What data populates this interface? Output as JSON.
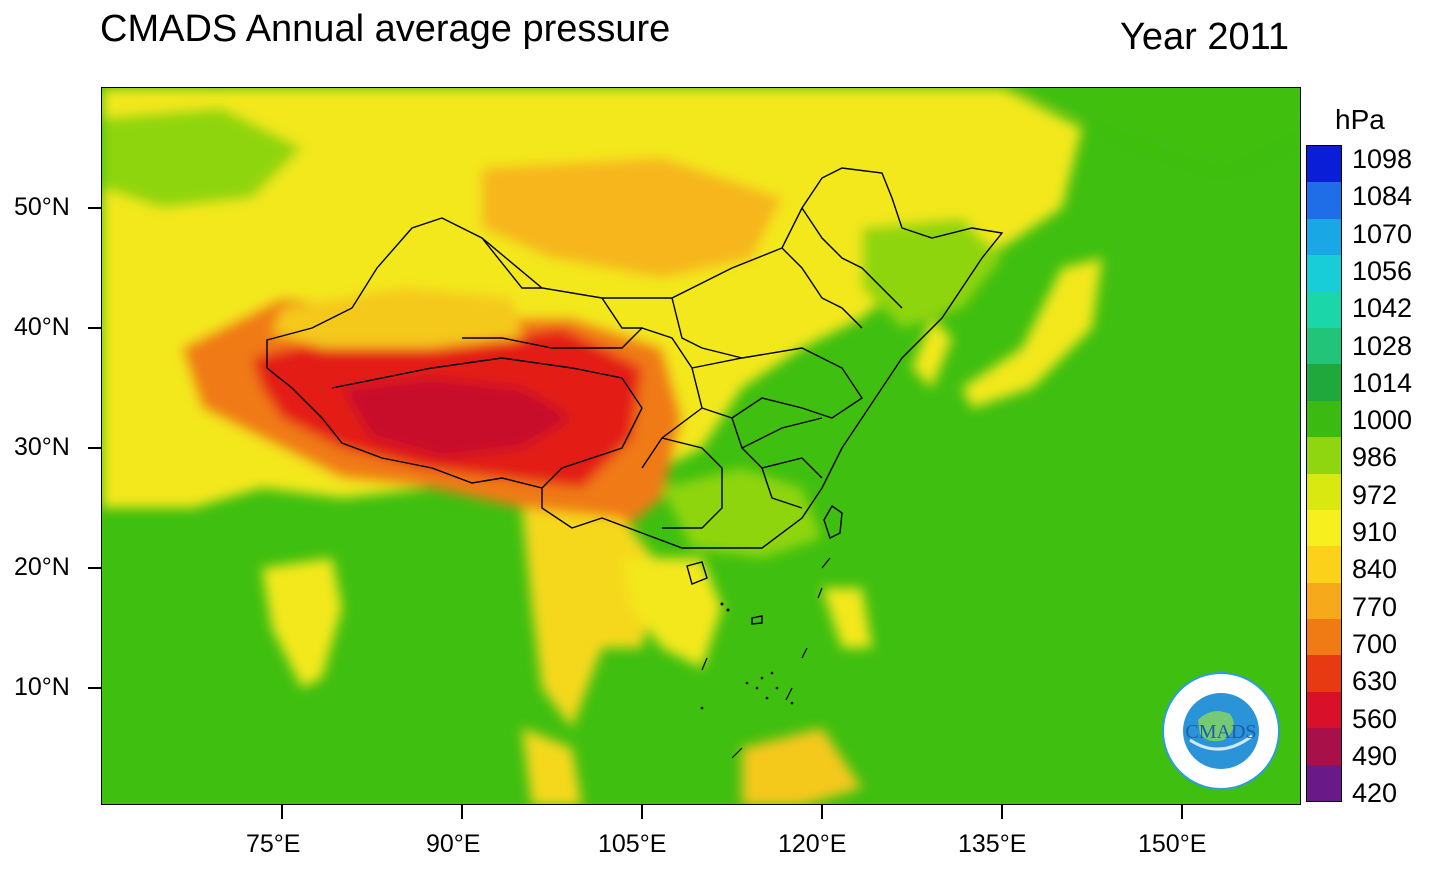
{
  "title": "CMADS Annual average pressure",
  "year": "Year 2011",
  "unit": "hPa",
  "y_ticks": [
    "50°N",
    "40°N",
    "30°N",
    "20°N",
    "10°N"
  ],
  "x_ticks": [
    "75°E",
    "90°E",
    "105°E",
    "120°E",
    "135°E",
    "150°E"
  ],
  "colorbar": {
    "labels": [
      "1098",
      "1084",
      "1070",
      "1056",
      "1042",
      "1028",
      "1014",
      "1000",
      "986",
      "972",
      "910",
      "840",
      "770",
      "700",
      "630",
      "560",
      "490",
      "420"
    ],
    "colors": [
      "#0a1ed8",
      "#1f6ee8",
      "#1aa7e6",
      "#18cdd8",
      "#1ad6a8",
      "#22c47a",
      "#21a83c",
      "#3bbb12",
      "#8fd510",
      "#d9e810",
      "#f7f01e",
      "#fbd11a",
      "#f6a91a",
      "#f07a14",
      "#e83a12",
      "#d8102a",
      "#a8104a",
      "#6a1a88"
    ]
  },
  "logo_text": "CMADS"
}
